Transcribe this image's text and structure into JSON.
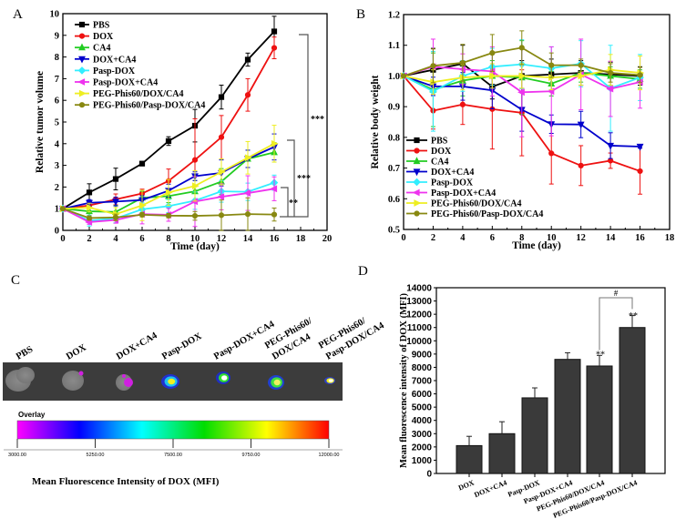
{
  "panels": {
    "a": "A",
    "b": "B",
    "c": "C",
    "d": "D"
  },
  "chart_data": [
    {
      "type": "line",
      "panel": "A",
      "xlabel": "Time (day)",
      "ylabel": "Relative tumor volume",
      "xlim": [
        0,
        20
      ],
      "ylim": [
        0,
        10
      ],
      "xticks": [
        0,
        2,
        4,
        6,
        8,
        10,
        12,
        14,
        16,
        18,
        20
      ],
      "yticks": [
        0,
        1,
        2,
        3,
        4,
        5,
        6,
        7,
        8,
        9,
        10
      ],
      "legend": "top-left",
      "x": [
        0,
        2,
        4,
        6,
        8,
        10,
        12,
        14,
        16
      ],
      "series": [
        {
          "name": "PBS",
          "color": "#000000",
          "marker": "square",
          "values": [
            1,
            1.75,
            2.37,
            3.08,
            4.12,
            4.83,
            6.15,
            7.88,
            9.18
          ],
          "err": [
            0,
            0.4,
            0.5,
            0.1,
            0.2,
            0.75,
            0.55,
            0.3,
            0.7
          ]
        },
        {
          "name": "DOX",
          "color": "#ee1111",
          "marker": "circle",
          "values": [
            1,
            1.15,
            1.43,
            1.7,
            2.28,
            3.25,
            4.3,
            6.25,
            8.42
          ],
          "err": [
            0,
            0.1,
            0.25,
            0.2,
            0.55,
            1.9,
            1.0,
            0.75,
            0.5
          ]
        },
        {
          "name": "CA4",
          "color": "#22cc22",
          "marker": "triangle-up",
          "values": [
            1,
            0.88,
            0.85,
            1.5,
            1.58,
            1.8,
            2.25,
            3.3,
            3.6
          ],
          "err": [
            0,
            0.2,
            0.3,
            0.3,
            0.3,
            0.5,
            0.6,
            0.4,
            0.45
          ]
        },
        {
          "name": "DOX+CA4",
          "color": "#0000cc",
          "marker": "triangle-down",
          "values": [
            1,
            1.27,
            1.33,
            1.4,
            1.83,
            2.5,
            2.65,
            3.3,
            3.85
          ],
          "err": [
            0,
            0.15,
            0.2,
            0.2,
            0.3,
            0.2,
            0.6,
            0.4,
            0.6
          ]
        },
        {
          "name": "Pasp-DOX",
          "color": "#33eeff",
          "marker": "diamond",
          "values": [
            1,
            0.45,
            0.55,
            0.97,
            1.12,
            1.37,
            1.8,
            1.78,
            2.2
          ],
          "err": [
            0,
            0.25,
            0.2,
            0.3,
            0.3,
            0.4,
            0.5,
            0.4,
            0.35
          ]
        },
        {
          "name": "Pasp-DOX+CA4",
          "color": "#ee33ee",
          "marker": "triangle-left",
          "values": [
            1,
            0.38,
            0.48,
            0.75,
            0.72,
            1.33,
            1.55,
            1.72,
            1.92
          ],
          "err": [
            0,
            0.1,
            0.15,
            0.45,
            0.3,
            1.15,
            0.6,
            0.8,
            0.55
          ]
        },
        {
          "name": "PEG-Phis60/DOX/CA4",
          "color": "#eeee22",
          "marker": "triangle-right",
          "values": [
            1,
            1.05,
            0.75,
            1.15,
            1.75,
            2.05,
            2.7,
            3.35,
            4.0
          ],
          "err": [
            0,
            0.2,
            0.3,
            0.7,
            0.6,
            0.7,
            0.6,
            0.75,
            0.85
          ]
        },
        {
          "name": "PEG-Phis60/Pasp-DOX/CA4",
          "color": "#888811",
          "marker": "hexagon",
          "values": [
            1,
            0.57,
            0.6,
            0.72,
            0.68,
            0.67,
            0.7,
            0.75,
            0.73
          ],
          "err": [
            0,
            0.1,
            0.15,
            0.1,
            0.1,
            0.2,
            0.7,
            0.75,
            0.3
          ]
        }
      ],
      "annotations": [
        "***",
        "***",
        "**"
      ]
    },
    {
      "type": "line",
      "panel": "B",
      "xlabel": "Time (day)",
      "ylabel": "Relative body weight",
      "xlim": [
        0,
        18
      ],
      "ylim": [
        0.5,
        1.2
      ],
      "xticks": [
        0,
        2,
        4,
        6,
        8,
        10,
        12,
        14,
        16,
        18
      ],
      "yticks": [
        "0.5",
        "0.6",
        "0.7",
        "0.8",
        "0.9",
        "1.0",
        "1.1",
        "1.2"
      ],
      "legend": "bottom-left",
      "x": [
        0,
        2,
        4,
        6,
        8,
        10,
        12,
        14,
        16
      ],
      "series": [
        {
          "name": "PBS",
          "color": "#000000",
          "marker": "square",
          "values": [
            1,
            1.02,
            1.04,
            0.965,
            1.0,
            1.005,
            1.01,
            1.005,
            1.0
          ],
          "err": [
            0,
            0.07,
            0.06,
            0.04,
            0.05,
            0.05,
            0.04,
            0.04,
            0.03
          ]
        },
        {
          "name": "DOX",
          "color": "#ee1111",
          "marker": "circle",
          "values": [
            1,
            0.887,
            0.907,
            0.892,
            0.88,
            0.748,
            0.708,
            0.724,
            0.69
          ],
          "err": [
            0,
            0.06,
            0.065,
            0.13,
            0.14,
            0.1,
            0.065,
            0.025,
            0.075
          ]
        },
        {
          "name": "CA4",
          "color": "#22cc22",
          "marker": "triangle-up",
          "values": [
            1,
            0.955,
            0.985,
            1.0,
            0.995,
            0.975,
            1.01,
            1.0,
            0.99
          ],
          "err": [
            0,
            0.12,
            0.05,
            0.05,
            0.12,
            0.04,
            0.03,
            0.03,
            0.03
          ]
        },
        {
          "name": "DOX+CA4",
          "color": "#0000cc",
          "marker": "triangle-down",
          "values": [
            1,
            0.966,
            0.966,
            0.953,
            0.89,
            0.843,
            0.842,
            0.773,
            0.77
          ],
          "err": [
            0,
            0.03,
            0.045,
            0.06,
            0.07,
            0.03,
            0.043,
            0.042,
            0.005
          ]
        },
        {
          "name": "Pasp-DOX",
          "color": "#33eeff",
          "marker": "diamond",
          "values": [
            1,
            0.95,
            1.0,
            1.03,
            1.038,
            1.025,
            1.04,
            0.96,
            0.995
          ],
          "err": [
            0,
            0.13,
            0.05,
            0.06,
            0.08,
            0.07,
            0.075,
            0.14,
            0.075
          ]
        },
        {
          "name": "Pasp-DOX+CA4",
          "color": "#ee33ee",
          "marker": "triangle-left",
          "values": [
            1,
            1.03,
            1.022,
            1.015,
            0.947,
            0.95,
            1.005,
            0.958,
            0.98
          ],
          "err": [
            0,
            0.09,
            0.05,
            0.08,
            0.145,
            0.145,
            0.115,
            0.09,
            0.085
          ]
        },
        {
          "name": "PEG-Phis60/DOX/CA4",
          "color": "#eeee22",
          "marker": "triangle-right",
          "values": [
            1,
            0.98,
            0.995,
            1.0,
            1.0,
            0.995,
            1.0,
            1.02,
            1.01
          ],
          "err": [
            0,
            0.04,
            0.04,
            0.04,
            0.04,
            0.04,
            0.03,
            0.05,
            0.055
          ]
        },
        {
          "name": "PEG-Phis60/Pasp-DOX/CA4",
          "color": "#888811",
          "marker": "hexagon",
          "values": [
            1,
            1.033,
            1.043,
            1.075,
            1.092,
            1.035,
            1.035,
            1.01,
            1.003
          ],
          "err": [
            0,
            0.055,
            0.06,
            0.06,
            0.055,
            0.04,
            0.02,
            0.03,
            0.025
          ]
        }
      ]
    },
    {
      "type": "bar",
      "panel": "D",
      "ylabel": "Mean fluorescence intensity of DOX (MFI)",
      "ylim": [
        0,
        14000
      ],
      "yticks": [
        0,
        1000,
        2000,
        3000,
        4000,
        5000,
        6000,
        7000,
        8000,
        9000,
        10000,
        11000,
        12000,
        13000,
        14000
      ],
      "categories": [
        "DOX",
        "DOX+CA4",
        "Pasp-DOX",
        "Pasp-DOX+CA4",
        "PEG-Phis60/DOX/CA4",
        "PEG-Phis60/Pasp-DOX/CA4"
      ],
      "values": [
        2100,
        3000,
        5700,
        8600,
        8100,
        11000
      ],
      "err": [
        700,
        900,
        750,
        500,
        800,
        900
      ],
      "bar_color": "#3a3a3a",
      "annotations": {
        "star_5": "**",
        "star_6": "**",
        "hash": "#"
      }
    }
  ],
  "panel_c": {
    "labels": [
      "PBS",
      "DOX",
      "DOX+CA4",
      "Pasp-DOX",
      "Pasp-DOX+CA4",
      [
        "PEG-Phis60/",
        "DOX/CA4"
      ],
      [
        "PEG-Phis60/",
        "Pasp-DOX/CA4"
      ]
    ],
    "colorbar_title": "Overlay",
    "colorbar_ticks": [
      "3000.00",
      "5250.00",
      "7500.00",
      "9750.00",
      "12000.00"
    ],
    "colorbar_colors": [
      "#ff00ff",
      "#0000ff",
      "#00ffff",
      "#00dd00",
      "#ffff00",
      "#ff0000"
    ],
    "caption": "Mean Fluorescence  Intensity of DOX (MFI)"
  }
}
